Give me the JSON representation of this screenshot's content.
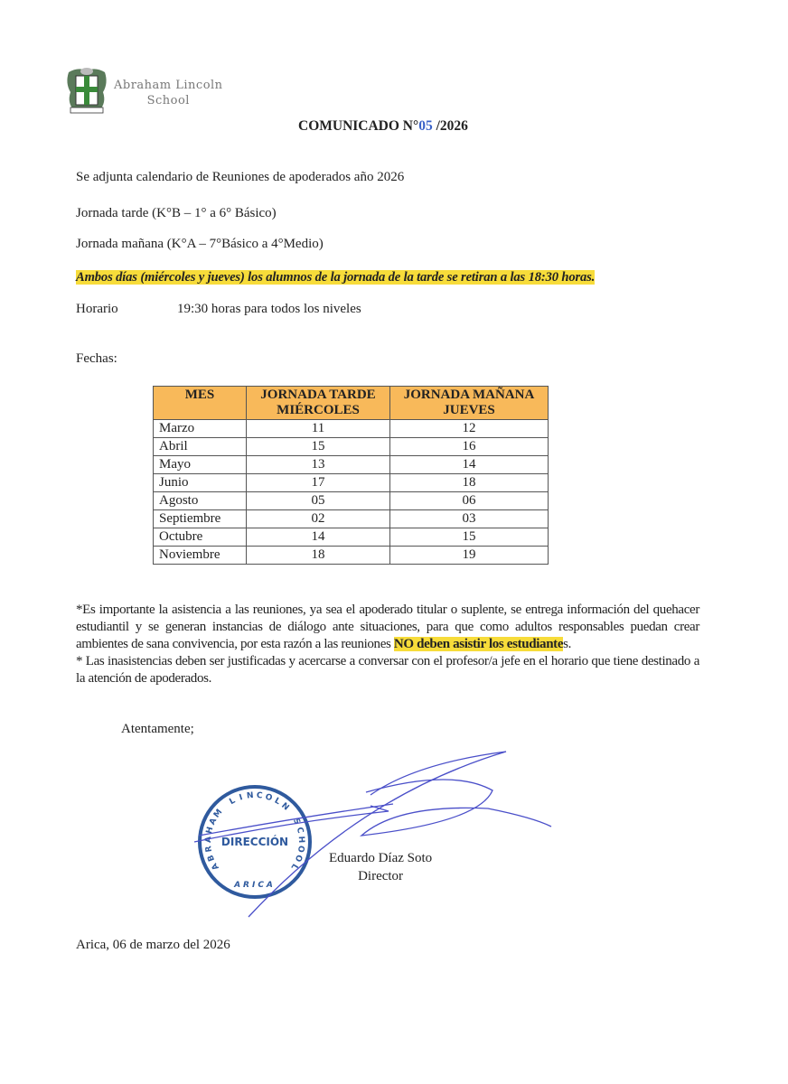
{
  "header": {
    "school_name_line1": "Abraham Lincoln",
    "school_name_line2": "School",
    "crest_text": "LINCOLN",
    "title_prefix": "COMUNICADO N°",
    "title_number": "05",
    "title_suffix": " /2026"
  },
  "body": {
    "intro": "Se adjunta calendario de Reuniones de apoderados año 2026",
    "jornada_tarde": "Jornada tarde (K°B – 1° a 6° Básico)",
    "jornada_manana": "Jornada mañana (K°A – 7°Básico a 4°Medio)",
    "highlight_notice": "Ambos días (miércoles y jueves) los alumnos de la jornada de la tarde se retiran a las 18:30 horas.",
    "horario_label": "Horario",
    "horario_value": "19:30 horas para todos los niveles",
    "fechas_label": "Fechas:"
  },
  "table": {
    "headers": [
      {
        "line1": "MES",
        "line2": ""
      },
      {
        "line1": "JORNADA TARDE",
        "line2": "MIÉRCOLES"
      },
      {
        "line1": "JORNADA MAÑANA",
        "line2": "JUEVES"
      }
    ],
    "rows": [
      [
        "Marzo",
        "11",
        "12"
      ],
      [
        "Abril",
        "15",
        "16"
      ],
      [
        "Mayo",
        "13",
        "14"
      ],
      [
        "Junio",
        "17",
        "18"
      ],
      [
        "Agosto",
        "05",
        "06"
      ],
      [
        "Septiembre",
        "02",
        "03"
      ],
      [
        "Octubre",
        "14",
        "15"
      ],
      [
        "Noviembre",
        "18",
        "19"
      ]
    ],
    "header_color": "#f8b95a"
  },
  "notes": {
    "p1_start": "*Es importante la asistencia a las reuniones, ya sea el apoderado titular o suplente, se entrega información del quehacer estudiantil y se generan instancias de diálogo ante situaciones, para que como adultos responsables puedan crear ambientes de sana convivencia, por esta razón a las reuniones ",
    "p1_highlight": "NO deben asistir los estudiante",
    "p1_end": "s.",
    "p2": "* Las inasistencias deben ser justificadas y acercarse a conversar con el profesor/a jefe en el horario que tiene destinado a la atención de apoderados."
  },
  "closing": {
    "salutation": "Atentamente;",
    "stamp_ring": "ABRAHAM LINCOLN SCHOOL",
    "stamp_center": "DIRECCIÓN",
    "stamp_bottom": "ARICA",
    "signer_name": "Eduardo Díaz Soto",
    "signer_role": "Director",
    "place_date": "Arica, 06 de marzo del 2026"
  },
  "colors": {
    "highlight": "#f7dc3a",
    "stamp_blue": "#2f5a9e",
    "signature_blue": "#4a4fc9",
    "crest_green": "#3a8a3a"
  }
}
